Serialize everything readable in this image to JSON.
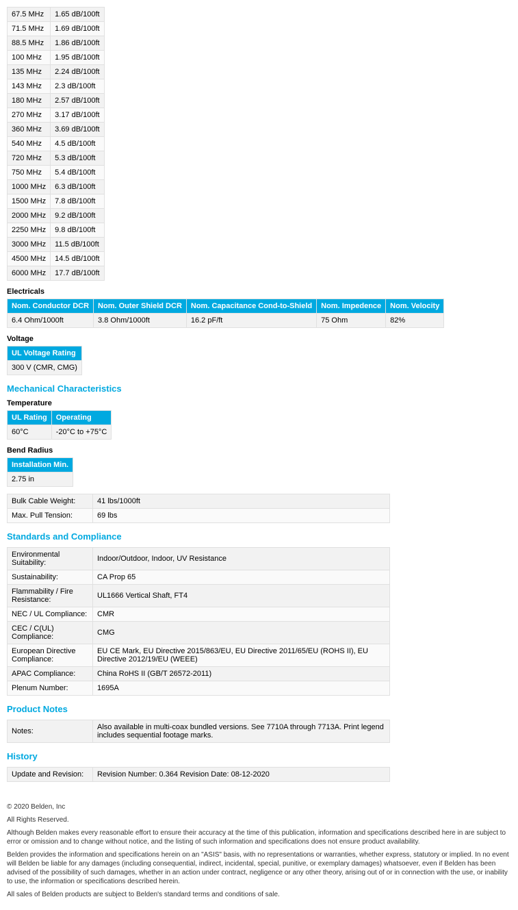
{
  "attenuation": {
    "rows": [
      [
        "67.5 MHz",
        "1.65 dB/100ft"
      ],
      [
        "71.5 MHz",
        "1.69 dB/100ft"
      ],
      [
        "88.5 MHz",
        "1.86 dB/100ft"
      ],
      [
        "100 MHz",
        "1.95 dB/100ft"
      ],
      [
        "135 MHz",
        "2.24 dB/100ft"
      ],
      [
        "143 MHz",
        "2.3 dB/100ft"
      ],
      [
        "180 MHz",
        "2.57 dB/100ft"
      ],
      [
        "270 MHz",
        "3.17 dB/100ft"
      ],
      [
        "360 MHz",
        "3.69 dB/100ft"
      ],
      [
        "540 MHz",
        "4.5 dB/100ft"
      ],
      [
        "720 MHz",
        "5.3 dB/100ft"
      ],
      [
        "750 MHz",
        "5.4 dB/100ft"
      ],
      [
        "1000 MHz",
        "6.3 dB/100ft"
      ],
      [
        "1500 MHz",
        "7.8 dB/100ft"
      ],
      [
        "2000 MHz",
        "9.2 dB/100ft"
      ],
      [
        "2250 MHz",
        "9.8 dB/100ft"
      ],
      [
        "3000 MHz",
        "11.5 dB/100ft"
      ],
      [
        "4500 MHz",
        "14.5 dB/100ft"
      ],
      [
        "6000 MHz",
        "17.7 dB/100ft"
      ]
    ]
  },
  "electricals": {
    "title": "Electricals",
    "headers": [
      "Nom. Conductor DCR",
      "Nom. Outer Shield DCR",
      "Nom. Capacitance Cond-to-Shield",
      "Nom. Impedence",
      "Nom. Velocity"
    ],
    "row": [
      "6.4 Ohm/1000ft",
      "3.8 Ohm/1000ft",
      "16.2 pF/ft",
      "75 Ohm",
      "82%"
    ]
  },
  "voltage": {
    "title": "Voltage",
    "header": "UL Voltage Rating",
    "value": "300 V (CMR, CMG)"
  },
  "mechanical": {
    "title": "Mechanical Characteristics",
    "temperature": {
      "title": "Temperature",
      "headers": [
        "UL Rating",
        "Operating"
      ],
      "row": [
        "60°C",
        "-20°C to +75°C"
      ]
    },
    "bend_radius": {
      "title": "Bend Radius",
      "header": "Installation Min.",
      "value": "2.75 in"
    },
    "props": [
      [
        "Bulk Cable Weight:",
        "41 lbs/1000ft"
      ],
      [
        "Max. Pull Tension:",
        "69 lbs"
      ]
    ]
  },
  "standards": {
    "title": "Standards and Compliance",
    "rows": [
      [
        "Environmental Suitability:",
        "Indoor/Outdoor, Indoor, UV Resistance"
      ],
      [
        "Sustainability:",
        "CA Prop 65"
      ],
      [
        "Flammability / Fire Resistance:",
        "UL1666 Vertical Shaft, FT4"
      ],
      [
        "NEC / UL Compliance:",
        "CMR"
      ],
      [
        "CEC / C(UL) Compliance:",
        "CMG"
      ],
      [
        "European Directive Compliance:",
        "EU CE Mark, EU Directive 2015/863/EU, EU Directive 2011/65/EU (ROHS II), EU Directive 2012/19/EU (WEEE)"
      ],
      [
        "APAC Compliance:",
        "China RoHS II (GB/T 26572-2011)"
      ],
      [
        "Plenum Number:",
        "1695A"
      ]
    ]
  },
  "product_notes": {
    "title": "Product Notes",
    "rows": [
      [
        "Notes:",
        "Also available in multi-coax bundled versions. See 7710A through 7713A. Print legend includes sequential footage marks."
      ]
    ]
  },
  "history": {
    "title": "History",
    "rows": [
      [
        "Update and Revision:",
        "Revision Number: 0.364 Revision Date: 08-12-2020"
      ]
    ]
  },
  "footer": {
    "copyright": "© 2020 Belden, Inc",
    "rights": "All Rights Reserved.",
    "p1": "Although Belden makes every reasonable effort to ensure their accuracy at the time of this publication, information and specifications described here in are subject to error or omission and to change without notice, and the listing of such information and specifications does not ensure product availability.",
    "p2": "Belden provides the information and specifications herein on an \"ASIS\" basis, with no representations or warranties, whether express, statutory or implied. In no event will Belden be liable for any damages (including consequential, indirect, incidental, special, punitive, or exemplary damages) whatsoever, even if Belden has been advised of the possibility of such damages, whether in an action under contract, negligence or any other theory, arising out of or in connection with the use, or inability to use, the information or specifications described herein.",
    "p3": "All sales of Belden products are subject to Belden's standard terms and conditions of sale."
  }
}
